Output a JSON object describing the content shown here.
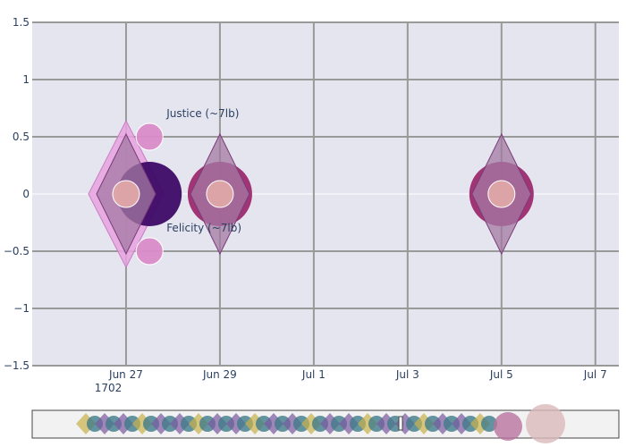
{
  "chart_data": {
    "type": "scatter",
    "title": "",
    "xlabel": "",
    "ylabel": "",
    "x_origin_label": "1702",
    "x_ticks": [
      "Jun 27",
      "Jun 29",
      "Jul 1",
      "Jul 3",
      "Jul 5",
      "Jul 7"
    ],
    "x_range": [
      "1702-06-25",
      "1702-07-07 12:00"
    ],
    "ylim": [
      -1.5,
      1.5
    ],
    "y_ticks": [
      "−1.5",
      "−1",
      "−0.5",
      "0",
      "0.5",
      "1",
      "1.5"
    ],
    "y_tick_values": [
      -1.5,
      -1,
      -0.5,
      0,
      0.5,
      1,
      1.5
    ],
    "grid": true,
    "background": "#e5e5f0",
    "range_slider": true,
    "series": [
      {
        "marker": "diamond-large",
        "color": "#e8a3e0",
        "points": [
          {
            "x": "1702-06-27",
            "y": 0
          }
        ]
      },
      {
        "marker": "circle-large",
        "color": "#3d0a66",
        "points": [
          {
            "x": "1702-06-27 12:00",
            "y": 0
          }
        ]
      },
      {
        "marker": "circle-large",
        "color": "#9c2a6e",
        "points": [
          {
            "x": "1702-06-29",
            "y": 0
          },
          {
            "x": "1702-07-05",
            "y": 0
          }
        ]
      },
      {
        "marker": "diamond",
        "color": "#a47aa3",
        "points": [
          {
            "x": "1702-06-27",
            "y": 0
          },
          {
            "x": "1702-06-29",
            "y": 0
          },
          {
            "x": "1702-07-05",
            "y": 0
          }
        ]
      },
      {
        "marker": "circle-small",
        "color": "#e0a8a8",
        "points": [
          {
            "x": "1702-06-27",
            "y": 0
          },
          {
            "x": "1702-06-29",
            "y": 0
          },
          {
            "x": "1702-07-05",
            "y": 0
          }
        ]
      },
      {
        "marker": "circle-small",
        "color": "#d98bc8",
        "points": [
          {
            "x": "1702-06-27 12:00",
            "y": 0.5,
            "label": "Justice (~7lb)"
          },
          {
            "x": "1702-06-27 12:00",
            "y": -0.5,
            "label": "Felicity (~7lb)"
          }
        ]
      }
    ]
  }
}
